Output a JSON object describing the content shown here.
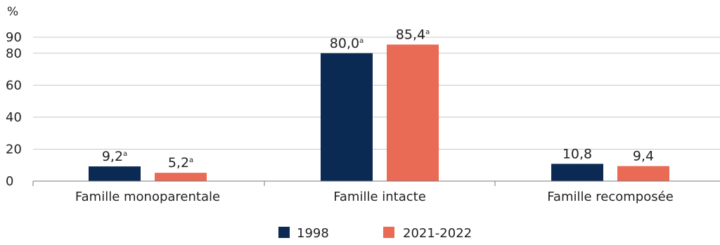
{
  "chart_data": {
    "type": "bar",
    "ylabel": "%",
    "ylim": [
      0,
      90
    ],
    "yticks": [
      0,
      20,
      40,
      60,
      80,
      90
    ],
    "categories": [
      "Famille monoparentale",
      "Famille intacte",
      "Famille recomposée"
    ],
    "series": [
      {
        "name": "1998",
        "color": "#0b2a53",
        "values": [
          9.2,
          80.0,
          10.8
        ],
        "labels": [
          "9,2",
          "80,0",
          "10,8"
        ],
        "superscripts": [
          "a",
          "a",
          ""
        ]
      },
      {
        "name": "2021-2022",
        "color": "#e96a55",
        "values": [
          5.2,
          85.4,
          9.4
        ],
        "labels": [
          "5,2",
          "85,4",
          "9,4"
        ],
        "superscripts": [
          "a",
          "a",
          ""
        ]
      }
    ],
    "grid": "horizontal",
    "legend_position": "bottom-center"
  }
}
